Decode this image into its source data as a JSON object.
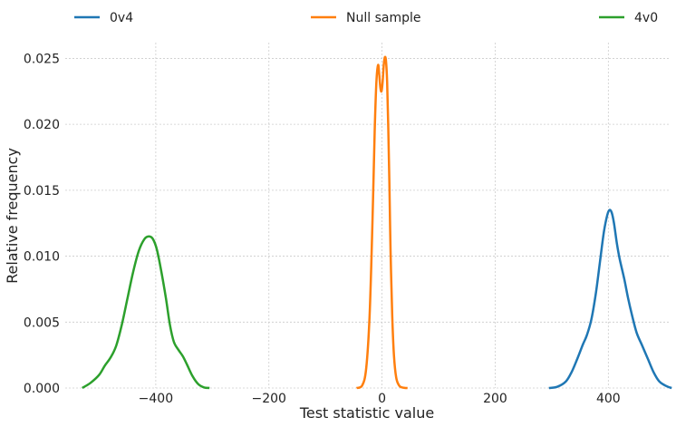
{
  "chart_data": {
    "type": "line",
    "title": "",
    "xlabel": "Test statistic value",
    "ylabel": "Relative frequency",
    "xlim": [
      -560,
      510
    ],
    "ylim": [
      0,
      0.0262
    ],
    "xticks": [
      -400,
      -200,
      0,
      200,
      400
    ],
    "xtick_labels": [
      "−400",
      "−200",
      "0",
      "200",
      "400"
    ],
    "yticks": [
      0.0,
      0.005,
      0.01,
      0.015,
      0.02,
      0.025
    ],
    "ytick_labels": [
      "0.000",
      "0.005",
      "0.010",
      "0.015",
      "0.020",
      "0.025"
    ],
    "grid": true,
    "legend_position": "top",
    "series": [
      {
        "name": "0v4",
        "color": "#1f77b4",
        "x": [
          295,
          310,
          325,
          335,
          345,
          355,
          362,
          370,
          378,
          385,
          392,
          398,
          402,
          406,
          410,
          415,
          420,
          428,
          435,
          442,
          450,
          460,
          470,
          480,
          490,
          500,
          508,
          512
        ],
        "y": [
          0.0,
          0.0001,
          0.0005,
          0.0012,
          0.0022,
          0.0033,
          0.004,
          0.0052,
          0.0072,
          0.0095,
          0.0118,
          0.0131,
          0.0135,
          0.0133,
          0.0125,
          0.011,
          0.0098,
          0.0083,
          0.0068,
          0.0055,
          0.0042,
          0.0032,
          0.0022,
          0.0012,
          0.0005,
          0.0002,
          5e-05,
          0.0
        ]
      },
      {
        "name": "Null sample",
        "color": "#ff7f0e",
        "x": [
          -45,
          -35,
          -28,
          -22,
          -17,
          -13,
          -10,
          -7,
          -5,
          -3,
          -1,
          1,
          3,
          5,
          7,
          9,
          11,
          13,
          15,
          18,
          21,
          25,
          30,
          35,
          40,
          45
        ],
        "y": [
          0.0,
          0.0002,
          0.0015,
          0.0055,
          0.0125,
          0.0195,
          0.0232,
          0.0245,
          0.0238,
          0.0228,
          0.0225,
          0.0232,
          0.0245,
          0.0251,
          0.0248,
          0.0232,
          0.0198,
          0.0155,
          0.0105,
          0.0055,
          0.0025,
          0.0008,
          0.0002,
          5e-05,
          1e-05,
          0.0
        ]
      },
      {
        "name": "4v0",
        "color": "#2ca02c",
        "x": [
          -530,
          -515,
          -500,
          -490,
          -480,
          -470,
          -460,
          -450,
          -440,
          -430,
          -420,
          -412,
          -405,
          -398,
          -390,
          -382,
          -375,
          -368,
          -360,
          -352,
          -345,
          -335,
          -325,
          -315,
          -305
        ],
        "y": [
          0.0,
          0.0004,
          0.001,
          0.0017,
          0.0023,
          0.0032,
          0.0048,
          0.0068,
          0.0088,
          0.0104,
          0.0113,
          0.0115,
          0.0113,
          0.0105,
          0.0088,
          0.0068,
          0.0048,
          0.0035,
          0.0029,
          0.0024,
          0.0018,
          0.0009,
          0.0003,
          5e-05,
          0.0
        ]
      }
    ]
  }
}
